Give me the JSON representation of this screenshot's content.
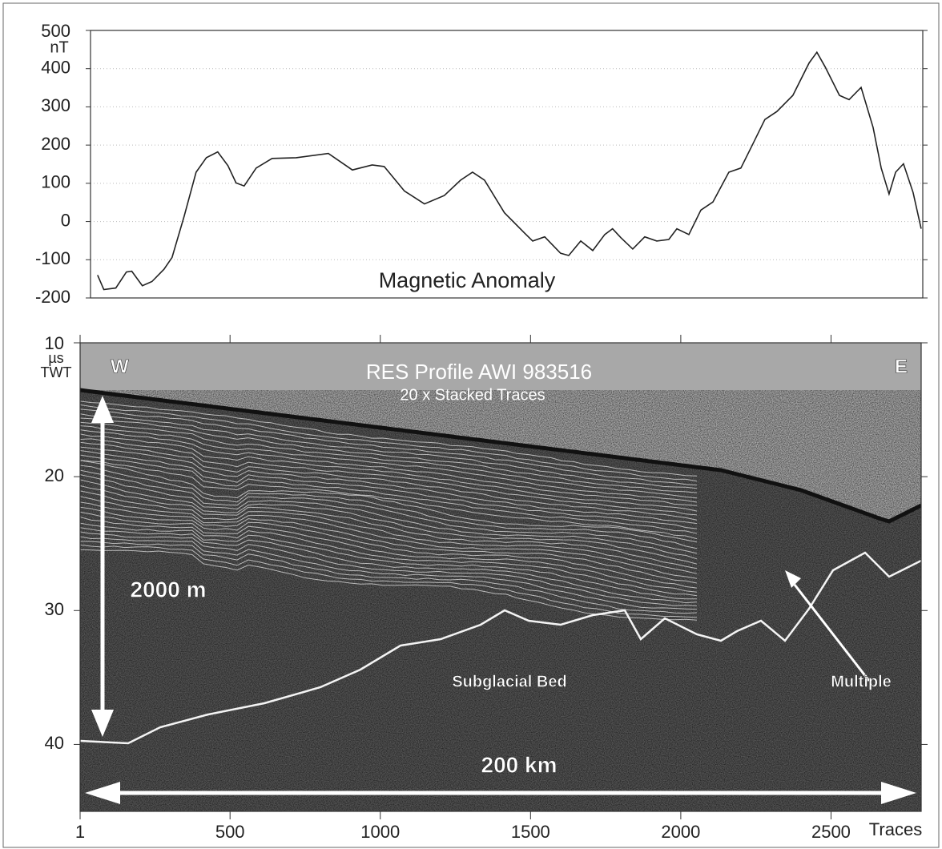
{
  "chart_data": [
    {
      "type": "line",
      "ylabel": "nT",
      "annotation": "Magnetic Anomaly",
      "color": "#222",
      "x": [
        59,
        80,
        120,
        155,
        173,
        208,
        240,
        280,
        307,
        347,
        387,
        421,
        459,
        493,
        520,
        547,
        587,
        640,
        720,
        827,
        907,
        973,
        1013,
        1080,
        1147,
        1213,
        1267,
        1307,
        1347,
        1413,
        1480,
        1507,
        1547,
        1600,
        1627,
        1667,
        1707,
        1747,
        1773,
        1800,
        1840,
        1880,
        1920,
        1960,
        1987,
        2027,
        2067,
        2107,
        2160,
        2200,
        2240,
        2280,
        2320,
        2373,
        2427,
        2453,
        2480,
        2528,
        2560,
        2600,
        2640,
        2667,
        2693,
        2715,
        2741,
        2773,
        2800
      ],
      "values": [
        -140,
        -178,
        -174,
        -132,
        -130,
        -168,
        -157,
        -125,
        -94,
        13,
        129,
        167,
        182,
        146,
        101,
        93,
        140,
        165,
        167,
        178,
        135,
        148,
        144,
        80,
        46,
        68,
        108,
        129,
        108,
        23,
        -30,
        -51,
        -40,
        -83,
        -89,
        -51,
        -76,
        -34,
        -19,
        -42,
        -72,
        -40,
        -51,
        -47,
        -19,
        -34,
        30,
        51,
        129,
        140,
        203,
        267,
        288,
        330,
        415,
        443,
        405,
        330,
        319,
        351,
        246,
        140,
        72,
        129,
        151,
        76,
        -19
      ],
      "xlim": [
        1,
        2800
      ],
      "ylim": [
        -200,
        500
      ],
      "yticks": [
        -200,
        -100,
        0,
        100,
        200,
        300,
        400,
        500
      ],
      "grid": true
    },
    {
      "type": "image",
      "title": "RES Profile AWI 983516",
      "subtitle": "20 x Stacked Traces",
      "ylabel": [
        "µs",
        "TWT"
      ],
      "xlabel": "Traces",
      "annotations": [
        "W",
        "E",
        "2000 m",
        "200 km",
        "Subglacial Bed",
        "Multiple"
      ],
      "xlim": [
        1,
        2800
      ],
      "xticks": [
        1,
        500,
        1000,
        1500,
        2000,
        2500
      ],
      "ylim": [
        10,
        45
      ],
      "yreversed": true,
      "yticks": [
        10,
        20,
        30,
        40
      ]
    }
  ]
}
